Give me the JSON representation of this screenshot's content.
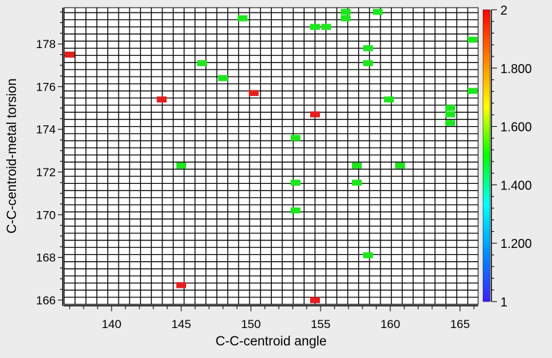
{
  "chart_data": {
    "type": "heatmap",
    "title": "",
    "xlabel": "C-C-centroid angle",
    "ylabel": "C-C-centroid-metal torsion",
    "x_bin_width": 0.7825,
    "y_bin_width": 0.3333,
    "xlim": [
      136.6,
      166.3
    ],
    "ylim": [
      165.8,
      179.7
    ],
    "x_ticks": [
      140,
      145,
      150,
      155,
      160,
      165
    ],
    "y_ticks": [
      166,
      168,
      170,
      172,
      174,
      176,
      178
    ],
    "grid": true,
    "colorbar": {
      "min": 1,
      "max": 2,
      "ticks": [
        1,
        1.2,
        1.4,
        1.6,
        1.8,
        2
      ],
      "tick_labels": [
        "1",
        "1.200",
        "1.400",
        "1.600",
        "1.800",
        "2"
      ],
      "colors": [
        "#3a1cff",
        "#0090ff",
        "#00ffff",
        "#00ff00",
        "#ffff00",
        "#ff8000",
        "#ff0000"
      ],
      "placement": "right"
    },
    "cell_colors": {
      "1.5": "#1ee61e",
      "2": "#e61e1e"
    },
    "cells": [
      {
        "x": 137.0,
        "y": 177.5,
        "value": 2
      },
      {
        "x": 143.6,
        "y": 175.4,
        "value": 2
      },
      {
        "x": 145.0,
        "y": 166.7,
        "value": 2
      },
      {
        "x": 145.0,
        "y": 172.3,
        "value": 1.5
      },
      {
        "x": 146.5,
        "y": 177.1,
        "value": 1.5
      },
      {
        "x": 148.0,
        "y": 176.4,
        "value": 1.5
      },
      {
        "x": 149.4,
        "y": 179.2,
        "value": 1.5
      },
      {
        "x": 150.2,
        "y": 175.7,
        "value": 2
      },
      {
        "x": 153.2,
        "y": 173.6,
        "value": 1.5
      },
      {
        "x": 153.2,
        "y": 171.5,
        "value": 1.5
      },
      {
        "x": 153.2,
        "y": 170.2,
        "value": 1.5
      },
      {
        "x": 154.6,
        "y": 178.8,
        "value": 1.5
      },
      {
        "x": 154.6,
        "y": 174.7,
        "value": 2
      },
      {
        "x": 154.6,
        "y": 166.0,
        "value": 2
      },
      {
        "x": 155.4,
        "y": 178.8,
        "value": 1.5
      },
      {
        "x": 156.8,
        "y": 179.5,
        "value": 1.5
      },
      {
        "x": 156.8,
        "y": 179.2,
        "value": 1.5
      },
      {
        "x": 157.6,
        "y": 172.3,
        "value": 1.5
      },
      {
        "x": 157.6,
        "y": 171.5,
        "value": 1.5
      },
      {
        "x": 158.4,
        "y": 177.8,
        "value": 1.5
      },
      {
        "x": 158.4,
        "y": 177.1,
        "value": 1.5
      },
      {
        "x": 158.4,
        "y": 168.1,
        "value": 1.5
      },
      {
        "x": 159.1,
        "y": 179.5,
        "value": 1.5
      },
      {
        "x": 159.9,
        "y": 175.4,
        "value": 1.5
      },
      {
        "x": 160.7,
        "y": 172.3,
        "value": 1.5
      },
      {
        "x": 164.3,
        "y": 175.0,
        "value": 1.5
      },
      {
        "x": 164.3,
        "y": 174.7,
        "value": 1.5
      },
      {
        "x": 164.3,
        "y": 174.3,
        "value": 1.5
      },
      {
        "x": 165.9,
        "y": 178.2,
        "value": 1.5
      },
      {
        "x": 165.9,
        "y": 175.8,
        "value": 1.5
      }
    ]
  }
}
